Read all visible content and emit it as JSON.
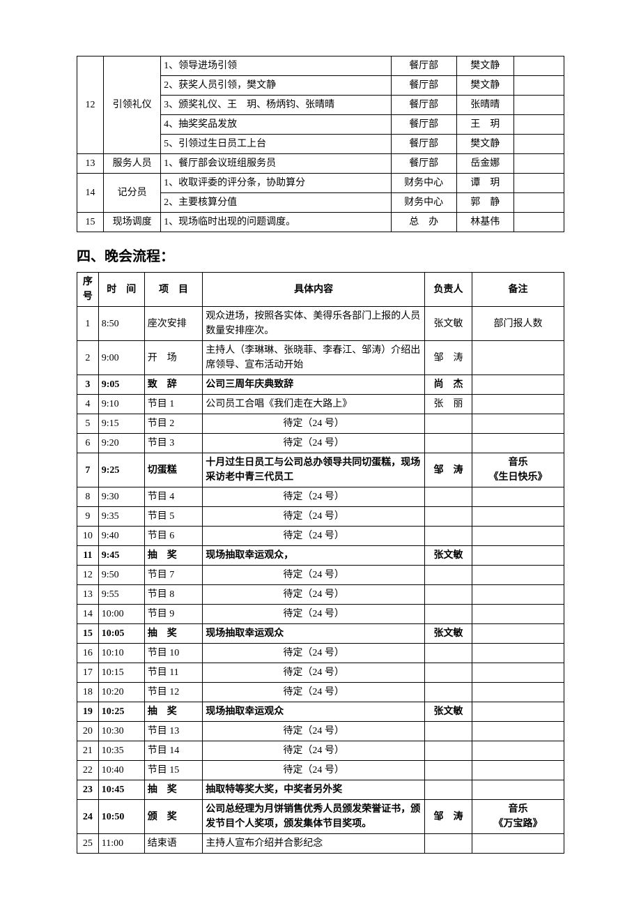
{
  "table1": {
    "rows": [
      {
        "num": "12",
        "role": "引领礼仪",
        "rowspan": 5,
        "task": "1、领导进场引领",
        "dept": "餐厅部",
        "person": "樊文静"
      },
      {
        "task": "2、获奖人员引领，樊文静",
        "dept": "餐厅部",
        "person": "樊文静"
      },
      {
        "task": "3、颁奖礼仪、王　玥、杨炳钧、张晴晴",
        "dept": "餐厅部",
        "person": "张晴晴"
      },
      {
        "task": "4、抽奖奖品发放",
        "dept": "餐厅部",
        "person": "王　玥"
      },
      {
        "task": "5、引领过生日员工上台",
        "dept": "餐厅部",
        "person": "樊文静"
      },
      {
        "num": "13",
        "role": "服务人员",
        "rowspan": 1,
        "task": "1、餐厅部会议班组服务员",
        "dept": "餐厅部",
        "person": "岳金娜"
      },
      {
        "num": "14",
        "role": "记分员",
        "rowspan": 2,
        "task": "1、收取评委的评分条，协助算分",
        "dept": "财务中心",
        "person": "谭　玥"
      },
      {
        "task": "2、主要核算分值",
        "dept": "财务中心",
        "person": "郭　静"
      },
      {
        "num": "15",
        "role": "现场调度",
        "rowspan": 1,
        "task": "1、现场临时出现的问题调度。",
        "dept": "总　办",
        "person": "林基伟"
      }
    ]
  },
  "section_title": "四、晚会流程：",
  "table2": {
    "headers": {
      "num": "序号",
      "time": "时　间",
      "project": "项　目",
      "content": "具体内容",
      "person": "负责人",
      "remark": "备注"
    },
    "rows": [
      {
        "num": "1",
        "time": "8:50",
        "project": "座次安排",
        "content": "观众进场，按照各实体、美得乐各部门上报的人员数量安排座次。",
        "person": "张文敏",
        "remark": "部门报人数",
        "content_align": "left"
      },
      {
        "num": "2",
        "time": "9:00",
        "project": "开　场",
        "content": "主持人（李琳琳、张晓菲、李春江、邹涛）介绍出席领导、宣布活动开始",
        "person": "邹　涛",
        "remark": "",
        "content_align": "left"
      },
      {
        "num": "3",
        "time": "9:05",
        "project": "致　辞",
        "content": "公司三周年庆典致辞",
        "person": "尚　杰",
        "remark": "",
        "content_align": "left",
        "bold": true
      },
      {
        "num": "4",
        "time": "9:10",
        "project": "节目 1",
        "content": "公司员工合唱《我们走在大路上》",
        "person": "张　丽",
        "remark": "",
        "content_align": "left"
      },
      {
        "num": "5",
        "time": "9:15",
        "project": "节目 2",
        "content": "待定（24 号）",
        "person": "",
        "remark": "",
        "content_align": "center"
      },
      {
        "num": "6",
        "time": "9:20",
        "project": "节目 3",
        "content": "待定（24 号）",
        "person": "",
        "remark": "",
        "content_align": "center"
      },
      {
        "num": "7",
        "time": "9:25",
        "project": "切蛋糕",
        "content": "十月过生日员工与公司总办领导共同切蛋糕，现场采访老中青三代员工",
        "person": "邹　涛",
        "remark": "音乐\n《生日快乐》",
        "content_align": "left",
        "bold": true
      },
      {
        "num": "8",
        "time": "9:30",
        "project": "节目 4",
        "content": "待定（24 号）",
        "person": "",
        "remark": "",
        "content_align": "center"
      },
      {
        "num": "9",
        "time": "9:35",
        "project": "节目 5",
        "content": "待定（24 号）",
        "person": "",
        "remark": "",
        "content_align": "center"
      },
      {
        "num": "10",
        "time": "9:40",
        "project": "节目 6",
        "content": "待定（24 号）",
        "person": "",
        "remark": "",
        "content_align": "center"
      },
      {
        "num": "11",
        "time": "9:45",
        "project": "抽　奖",
        "content": "现场抽取幸运观众，",
        "person": "张文敏",
        "remark": "",
        "content_align": "left",
        "bold": true
      },
      {
        "num": "12",
        "time": "9:50",
        "project": "节目 7",
        "content": "待定（24 号）",
        "person": "",
        "remark": "",
        "content_align": "center"
      },
      {
        "num": "13",
        "time": "9:55",
        "project": "节目 8",
        "content": "待定（24 号）",
        "person": "",
        "remark": "",
        "content_align": "center"
      },
      {
        "num": "14",
        "time": "10:00",
        "project": "节目 9",
        "content": "待定（24 号）",
        "person": "",
        "remark": "",
        "content_align": "center"
      },
      {
        "num": "15",
        "time": "10:05",
        "project": "抽　奖",
        "content": "现场抽取幸运观众",
        "person": "张文敏",
        "remark": "",
        "content_align": "left",
        "bold": true
      },
      {
        "num": "16",
        "time": "10:10",
        "project": "节目 10",
        "content": "待定（24 号）",
        "person": "",
        "remark": "",
        "content_align": "center"
      },
      {
        "num": "17",
        "time": "10:15",
        "project": "节目 11",
        "content": "待定（24 号）",
        "person": "",
        "remark": "",
        "content_align": "center"
      },
      {
        "num": "18",
        "time": "10:20",
        "project": "节目 12",
        "content": "待定（24 号）",
        "person": "",
        "remark": "",
        "content_align": "center"
      },
      {
        "num": "19",
        "time": "10:25",
        "project": "抽　奖",
        "content": "现场抽取幸运观众",
        "person": "张文敏",
        "remark": "",
        "content_align": "left",
        "bold": true
      },
      {
        "num": "20",
        "time": "10:30",
        "project": "节目 13",
        "content": "待定（24 号）",
        "person": "",
        "remark": "",
        "content_align": "center"
      },
      {
        "num": "21",
        "time": "10:35",
        "project": "节目 14",
        "content": "待定（24 号）",
        "person": "",
        "remark": "",
        "content_align": "center"
      },
      {
        "num": "22",
        "time": "10:40",
        "project": "节目 15",
        "content": "待定（24 号）",
        "person": "",
        "remark": "",
        "content_align": "center"
      },
      {
        "num": "23",
        "time": "10:45",
        "project": "抽　奖",
        "content": "抽取特等奖大奖，中奖者另外奖",
        "person": "",
        "remark": "",
        "content_align": "left",
        "bold": true
      },
      {
        "num": "24",
        "time": "10:50",
        "project": "颁　奖",
        "content": "公司总经理为月饼销售优秀人员颁发荣誉证书，颁发节目个人奖项，颁发集体节目奖项。",
        "person": "邹　涛",
        "remark": "音乐\n《万宝路》",
        "content_align": "left",
        "bold": true
      },
      {
        "num": "25",
        "time": "11:00",
        "project": "结束语",
        "content": "主持人宣布介绍并合影纪念",
        "person": "",
        "remark": "",
        "content_align": "left"
      }
    ]
  }
}
